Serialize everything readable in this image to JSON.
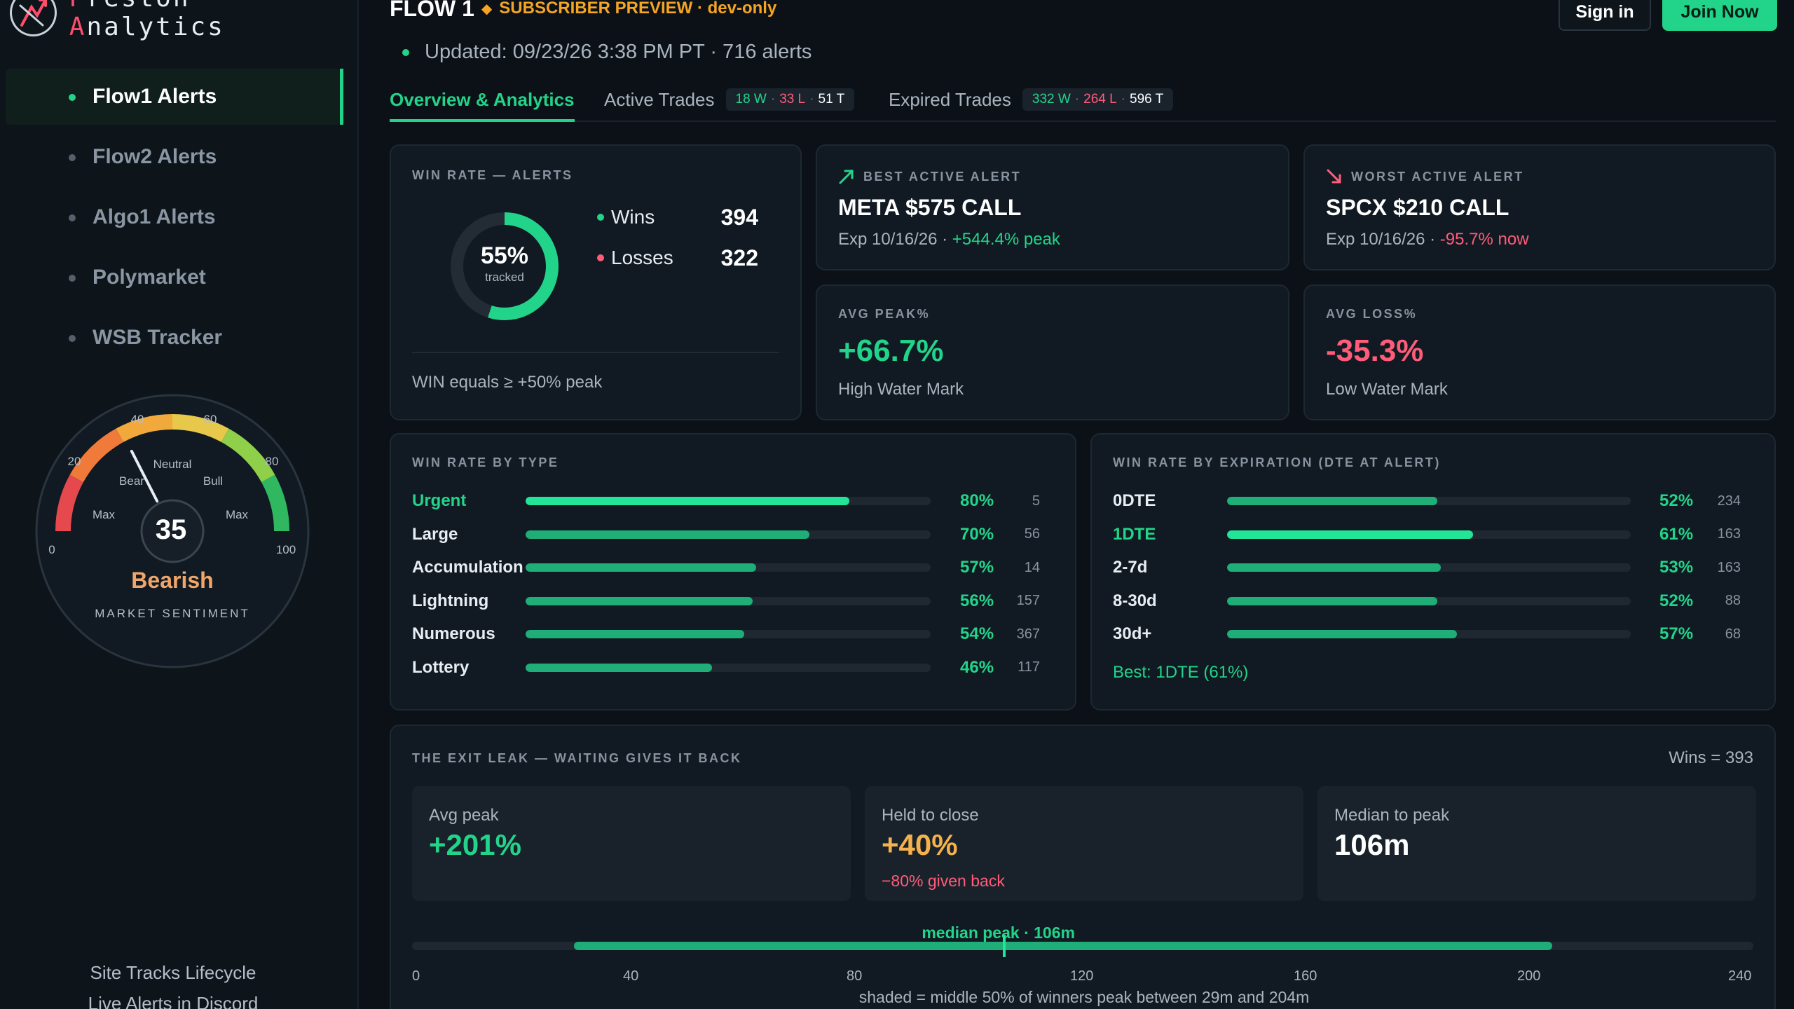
{
  "brand": {
    "name_part1": "P",
    "name_part2": "reston ",
    "name_part3": "A",
    "name_part4": "nalytics"
  },
  "sidebar": {
    "items": [
      {
        "label": "Flow1 Alerts",
        "active": true
      },
      {
        "label": "Flow2 Alerts",
        "active": false
      },
      {
        "label": "Algo1 Alerts",
        "active": false
      },
      {
        "label": "Polymarket",
        "active": false
      },
      {
        "label": "WSB Tracker",
        "active": false
      }
    ],
    "gauge": {
      "value": "35",
      "value_num": 35,
      "status": "Bearish",
      "caption": "MARKET SENTIMENT",
      "ticks": [
        "0",
        "20",
        "40",
        "60",
        "80",
        "100"
      ],
      "zone_labels": {
        "max_left": "Max",
        "bear": "Bear",
        "neutral": "Neutral",
        "bull": "Bull",
        "max_right": "Max"
      }
    },
    "footer": {
      "line1": "Site Tracks Lifecycle",
      "line2": "Live Alerts in Discord"
    }
  },
  "header": {
    "title": "FLOW 1",
    "badge": "SUBSCRIBER PREVIEW · dev-only",
    "updated": "Updated: 09/23/26 3:38 PM PT · 716 alerts",
    "signin": "Sign in",
    "join": "Join Now"
  },
  "tabs": [
    {
      "label": "Overview & Analytics",
      "active": true
    },
    {
      "label": "Active Trades",
      "w": "18 W",
      "l": "33 L",
      "t": "51 T"
    },
    {
      "label": "Expired Trades",
      "w": "332 W",
      "l": "264 L",
      "t": "596 T"
    }
  ],
  "winrate": {
    "label": "WIN RATE — ALERTS",
    "pct": "55%",
    "pct_value": 55,
    "sub": "tracked",
    "wins_label": "Wins",
    "wins": "394",
    "losses_label": "Losses",
    "losses": "322",
    "footnote": "WIN equals ≥ +50% peak"
  },
  "best_alert": {
    "label": "BEST ACTIVE ALERT",
    "ticker": "META $575 CALL",
    "exp": "Exp 10/16/26 · ",
    "change": "+544.4% peak"
  },
  "worst_alert": {
    "label": "WORST ACTIVE ALERT",
    "ticker": "SPCX $210 CALL",
    "exp": "Exp 10/16/26 · ",
    "change": "-95.7% now"
  },
  "avg_peak": {
    "label": "AVG PEAK%",
    "value": "+66.7%",
    "sub": "High Water Mark"
  },
  "avg_loss": {
    "label": "AVG LOSS%",
    "value": "-35.3%",
    "sub": "Low Water Mark"
  },
  "by_type": {
    "label": "WIN RATE BY TYPE",
    "rows": [
      {
        "name": "Urgent",
        "pct": "80%",
        "value": 80,
        "count": "5",
        "highlight": true
      },
      {
        "name": "Large",
        "pct": "70%",
        "value": 70,
        "count": "56",
        "highlight": false
      },
      {
        "name": "Accumulation",
        "pct": "57%",
        "value": 57,
        "count": "14",
        "highlight": false
      },
      {
        "name": "Lightning",
        "pct": "56%",
        "value": 56,
        "count": "157",
        "highlight": false
      },
      {
        "name": "Numerous",
        "pct": "54%",
        "value": 54,
        "count": "367",
        "highlight": false
      },
      {
        "name": "Lottery",
        "pct": "46%",
        "value": 46,
        "count": "117",
        "highlight": false
      }
    ]
  },
  "by_expiration": {
    "label": "WIN RATE BY EXPIRATION (DTE AT ALERT)",
    "rows": [
      {
        "name": "0DTE",
        "pct": "52%",
        "value": 52,
        "count": "234",
        "highlight": false
      },
      {
        "name": "1DTE",
        "pct": "61%",
        "value": 61,
        "count": "163",
        "highlight": true
      },
      {
        "name": "2-7d",
        "pct": "53%",
        "value": 53,
        "count": "163",
        "highlight": false
      },
      {
        "name": "8-30d",
        "pct": "52%",
        "value": 52,
        "count": "88",
        "highlight": false
      },
      {
        "name": "30d+",
        "pct": "57%",
        "value": 57,
        "count": "68",
        "highlight": false
      }
    ],
    "best": "Best: 1DTE (61%)"
  },
  "exit_leak": {
    "label": "THE EXIT LEAK — WAITING GIVES IT BACK",
    "wins": "Wins = 393",
    "avg_peak_label": "Avg peak",
    "avg_peak": "+201%",
    "held_label": "Held to close",
    "held": "+40%",
    "held_note": "−80% given back",
    "median_label": "Median to peak",
    "median": "106m",
    "timeline": {
      "min": 0,
      "max": 240,
      "shade_from": 29,
      "shade_to": 204,
      "median": 106,
      "marker_label": "median peak · 106m",
      "ticks": [
        "0",
        "40",
        "80",
        "120",
        "160",
        "200",
        "240"
      ]
    },
    "note": "shaded = middle 50% of winners peak between 29m and 204m"
  },
  "colors": {
    "accent": "#22d48a",
    "loss": "#ff5c7a",
    "warning": "#f5a524",
    "bearish": "#f0a66a"
  }
}
